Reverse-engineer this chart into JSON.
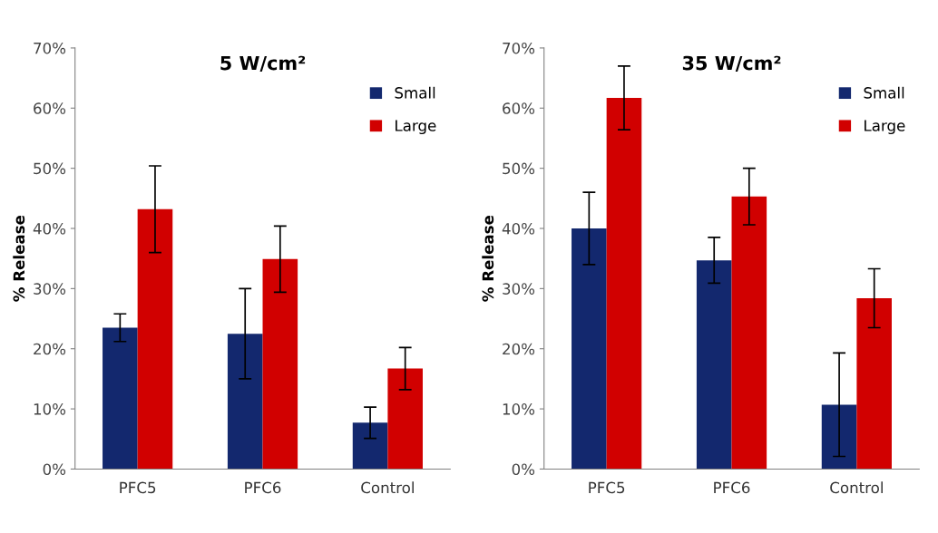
{
  "chart_data": [
    {
      "type": "bar",
      "title": "5 W/cm²",
      "ylabel": "% Release",
      "categories": [
        "PFC5",
        "PFC6",
        "Control"
      ],
      "ylim": [
        0,
        70
      ],
      "yticks": [
        {
          "value": 0,
          "label": "0%"
        },
        {
          "value": 10,
          "label": "10%"
        },
        {
          "value": 20,
          "label": "20%"
        },
        {
          "value": 30,
          "label": "30%"
        },
        {
          "value": 40,
          "label": "40%"
        },
        {
          "value": 50,
          "label": "50%"
        },
        {
          "value": 60,
          "label": "60%"
        },
        {
          "value": 70,
          "label": "70%"
        }
      ],
      "grid": false,
      "legend": "top right",
      "series": [
        {
          "name": "Small",
          "color": "#13286e",
          "values": [
            23.5,
            22.5,
            7.7
          ],
          "errors": [
            2.3,
            7.5,
            2.6
          ]
        },
        {
          "name": "Large",
          "color": "#d10000",
          "values": [
            43.2,
            34.9,
            16.7
          ],
          "errors": [
            7.2,
            5.5,
            3.5
          ]
        }
      ]
    },
    {
      "type": "bar",
      "title": "35 W/cm²",
      "ylabel": "% Release",
      "categories": [
        "PFC5",
        "PFC6",
        "Control"
      ],
      "ylim": [
        0,
        70
      ],
      "yticks": [
        {
          "value": 0,
          "label": "0%"
        },
        {
          "value": 10,
          "label": "10%"
        },
        {
          "value": 20,
          "label": "20%"
        },
        {
          "value": 30,
          "label": "30%"
        },
        {
          "value": 40,
          "label": "40%"
        },
        {
          "value": 50,
          "label": "50%"
        },
        {
          "value": 60,
          "label": "60%"
        },
        {
          "value": 70,
          "label": "70%"
        }
      ],
      "grid": false,
      "legend": "top right",
      "series": [
        {
          "name": "Small",
          "color": "#13286e",
          "values": [
            40,
            34.7,
            10.7
          ],
          "errors": [
            6,
            3.8,
            8.6
          ]
        },
        {
          "name": "Large",
          "color": "#d10000",
          "values": [
            61.7,
            45.3,
            28.4
          ],
          "errors": [
            5.3,
            4.7,
            4.9
          ]
        }
      ]
    }
  ]
}
